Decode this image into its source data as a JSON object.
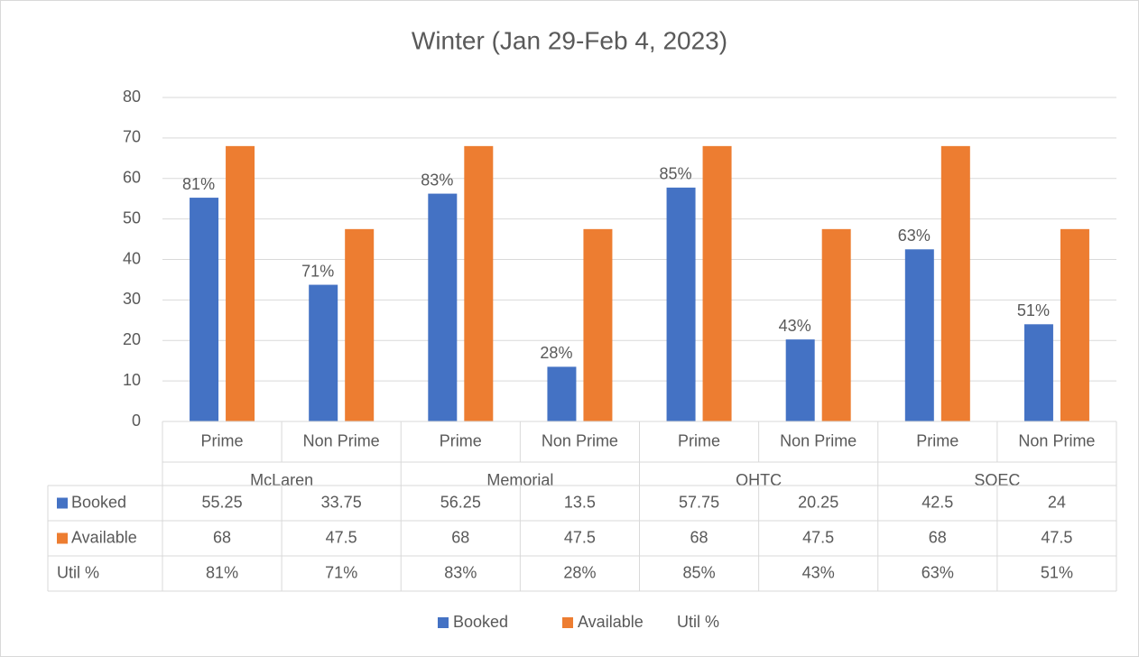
{
  "chart_data": {
    "type": "bar",
    "title": "Winter (Jan 29-Feb 4, 2023)",
    "categories": [
      "Prime",
      "Non Prime",
      "Prime",
      "Non Prime",
      "Prime",
      "Non Prime",
      "Prime",
      "Non Prime"
    ],
    "category_groups": [
      "McLaren",
      "Memorial",
      "OHTC",
      "SOEC"
    ],
    "series": [
      {
        "name": "Booked",
        "color": "#4472c4",
        "values": [
          55.25,
          33.75,
          56.25,
          13.5,
          57.75,
          20.25,
          42.5,
          24
        ]
      },
      {
        "name": "Available",
        "color": "#ed7d31",
        "values": [
          68,
          47.5,
          68,
          47.5,
          68,
          47.5,
          68,
          47.5
        ]
      },
      {
        "name": "Util %",
        "values": [
          81,
          71,
          83,
          28,
          85,
          43,
          63,
          51
        ],
        "value_labels": [
          "81%",
          "71%",
          "83%",
          "28%",
          "85%",
          "43%",
          "63%",
          "51%"
        ]
      }
    ],
    "ylim": [
      0,
      80
    ],
    "yticks": [
      0,
      10,
      20,
      30,
      40,
      50,
      60,
      70,
      80
    ],
    "grid": true,
    "legend": "bottom",
    "data_table": true
  }
}
